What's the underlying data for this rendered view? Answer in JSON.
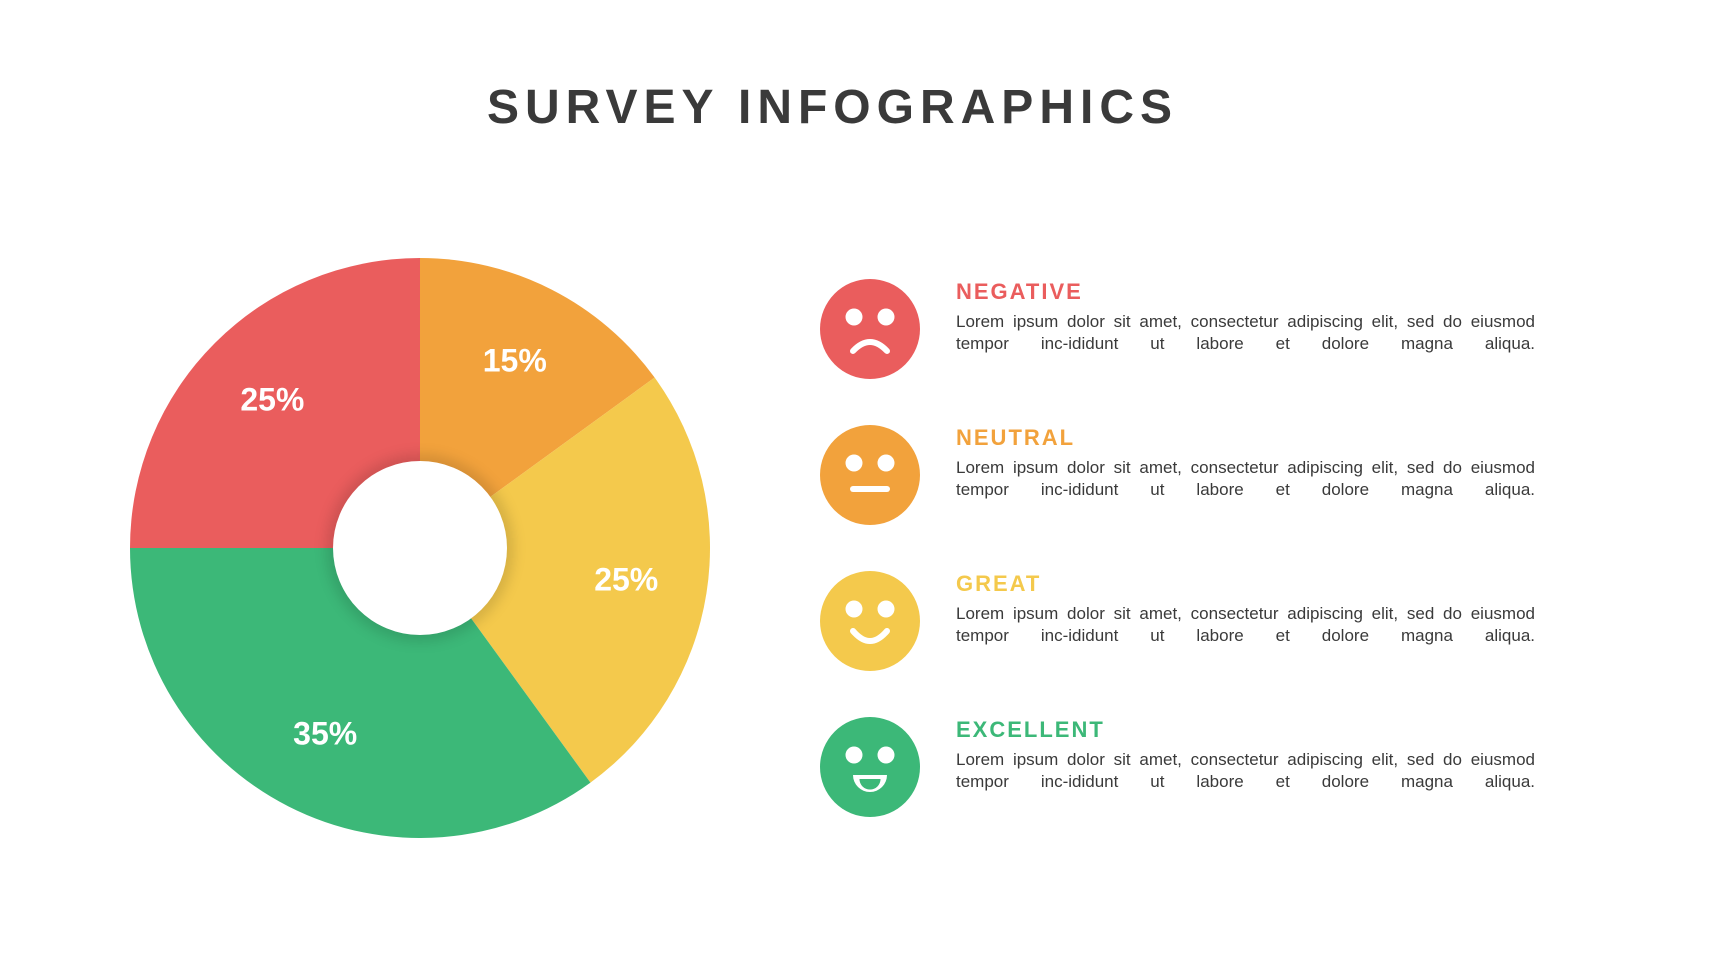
{
  "title": "SURVEY INFOGRAPHICS",
  "title_fontsize": 48,
  "title_color": "#3a3a3a",
  "background_color": "#ffffff",
  "chart": {
    "type": "donut",
    "diameter": 580,
    "inner_hole_ratio": 0.3,
    "start_angle_deg": -90,
    "slice_label_fontsize": 32,
    "slice_label_color": "#ffffff",
    "slices": [
      {
        "key": "neutral",
        "label": "15%",
        "value": 15,
        "color": "#f2a23c"
      },
      {
        "key": "great",
        "label": "25%",
        "value": 25,
        "color": "#f4c94c"
      },
      {
        "key": "excellent",
        "label": "35%",
        "value": 35,
        "color": "#3cb878"
      },
      {
        "key": "negative",
        "label": "25%",
        "value": 25,
        "color": "#ea5d5d"
      }
    ]
  },
  "legend": {
    "label_fontsize": 22,
    "desc_fontsize": 17,
    "desc_color": "#3a3a3a",
    "face_diameter": 100,
    "eye_color": "#ffffff",
    "mouth_color": "#ffffff",
    "items": [
      {
        "key": "negative",
        "label": "NEGATIVE",
        "mood": "sad",
        "color": "#ea5d5d",
        "desc": "Lorem ipsum dolor sit amet, consectetur adipiscing elit, sed do eiusmod tempor inc-ididunt ut labore et dolore magna aliqua."
      },
      {
        "key": "neutral",
        "label": "NEUTRAL",
        "mood": "neutral",
        "color": "#f2a23c",
        "desc": "Lorem ipsum dolor sit amet, consectetur adipiscing elit, sed do eiusmod tempor inc-ididunt ut labore et dolore magna aliqua."
      },
      {
        "key": "great",
        "label": "GREAT",
        "mood": "smile",
        "color": "#f4c94c",
        "desc": "Lorem ipsum dolor sit amet, consectetur adipiscing elit, sed do eiusmod tempor inc-ididunt ut labore et dolore magna aliqua."
      },
      {
        "key": "excellent",
        "label": "EXCELLENT",
        "mood": "grin",
        "color": "#3cb878",
        "desc": "Lorem ipsum dolor sit amet, consectetur adipiscing elit, sed do eiusmod tempor inc-ididunt ut labore et dolore magna aliqua."
      }
    ]
  }
}
